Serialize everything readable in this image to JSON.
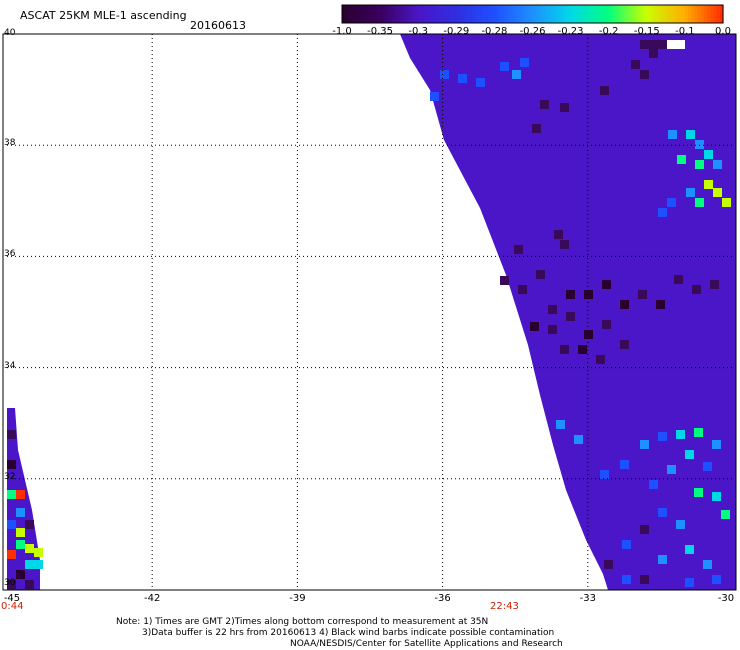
{
  "header": {
    "title": "ASCAT 25KM MLE-1 ascending",
    "date": "20160613"
  },
  "colorbar": {
    "ticks": [
      "-1.0",
      "-0.35",
      "-0.3",
      "-0.29",
      "-0.28",
      "-0.26",
      "-0.23",
      "-0.2",
      "-0.15",
      "-0.1",
      "0.0"
    ],
    "colors": [
      "#2a0030",
      "#3a0060",
      "#4a16c8",
      "#2f2ee0",
      "#1f50ff",
      "#1e90ff",
      "#00d8e8",
      "#00ff80",
      "#c8ff00",
      "#ffb000",
      "#ff3000"
    ]
  },
  "map": {
    "lon_ticks": [
      "-45",
      "-42",
      "-39",
      "-36",
      "-33",
      "-30"
    ],
    "lat_ticks": [
      "40",
      "38",
      "36",
      "34",
      "32",
      "30"
    ],
    "times": [
      "0:44",
      "22:43"
    ],
    "swath_color": "#4a16c8"
  },
  "footer": {
    "note1": "Note: 1) Times are GMT 2)Times along bottom correspond to measurement at 35N",
    "note2": "3)Data buffer is 22 hrs from 20160613 4) Black wind barbs indicate possible contamination",
    "note3": "NOAA/NESDIS/Center for Satellite Applications and Research"
  }
}
